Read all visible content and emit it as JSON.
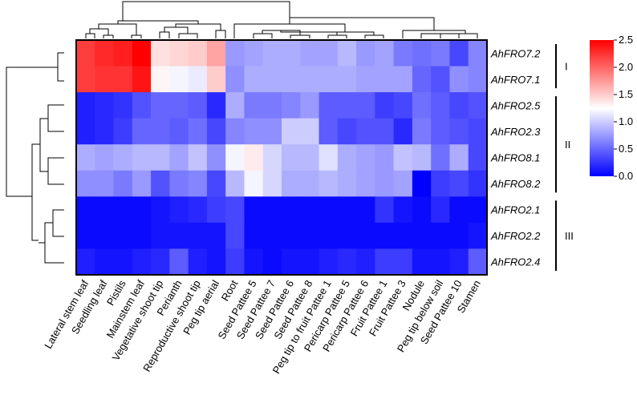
{
  "chart_data": {
    "type": "heatmap",
    "x": [
      "Lateral stem leaf",
      "Seedling leaf",
      "Pistils",
      "Mainstem leaf",
      "Vegetative shoot tip",
      "Perianth",
      "Reproductive shoot tip",
      "Peg tip aerial",
      "Root",
      "Seed Pattee 5",
      "Seed Pattee 7",
      "Seed Pattee 6",
      "Seed Pattee 8",
      "Peg tip to fruit Pattee 1",
      "Pericarp Pattee 5",
      "Pericarp Pattee 6",
      "Fruit Pattee 1",
      "Fruit Pattee 3",
      "Nodule",
      "Peg tip below soil",
      "Seed Pattee 10",
      "Stamen"
    ],
    "y": [
      "AhFRO7.2",
      "AhFRO7.1",
      "AhFRO2.5",
      "AhFRO2.3",
      "AhFRO8.1",
      "AhFRO8.2",
      "AhFRO2.1",
      "AhFRO2.2",
      "AhFRO2.4"
    ],
    "values": [
      [
        2.2,
        2.3,
        2.35,
        2.5,
        1.4,
        1.45,
        1.5,
        1.7,
        0.75,
        0.8,
        0.85,
        0.85,
        0.8,
        0.8,
        0.9,
        0.75,
        0.8,
        0.6,
        0.55,
        0.6,
        0.35,
        0.65
      ],
      [
        2.2,
        2.25,
        2.25,
        2.4,
        1.3,
        1.2,
        1.15,
        1.5,
        0.7,
        0.85,
        0.85,
        0.85,
        0.85,
        0.85,
        0.85,
        0.8,
        0.8,
        0.8,
        0.5,
        0.4,
        0.7,
        0.65
      ],
      [
        0.15,
        0.2,
        0.25,
        0.4,
        0.5,
        0.5,
        0.45,
        0.2,
        0.85,
        0.6,
        0.6,
        0.65,
        0.75,
        0.45,
        0.45,
        0.45,
        0.3,
        0.35,
        0.55,
        0.45,
        0.35,
        0.4
      ],
      [
        0.15,
        0.2,
        0.3,
        0.5,
        0.5,
        0.45,
        0.55,
        0.35,
        0.65,
        0.7,
        0.7,
        1.0,
        1.0,
        0.45,
        0.35,
        0.4,
        0.4,
        0.2,
        0.6,
        0.45,
        0.4,
        0.35
      ],
      [
        0.85,
        0.8,
        0.85,
        0.9,
        0.9,
        0.8,
        0.95,
        0.7,
        1.2,
        1.35,
        1.05,
        0.9,
        0.9,
        1.1,
        0.85,
        0.8,
        0.75,
        0.95,
        0.9,
        0.55,
        0.85,
        0.35
      ],
      [
        0.7,
        0.7,
        0.6,
        0.75,
        0.4,
        0.6,
        0.65,
        0.35,
        0.9,
        1.2,
        1.05,
        0.85,
        0.85,
        0.9,
        0.85,
        0.8,
        0.75,
        0.8,
        0.0,
        0.3,
        0.35,
        0.25
      ],
      [
        0.05,
        0.05,
        0.05,
        0.05,
        0.1,
        0.15,
        0.2,
        0.3,
        0.35,
        0.05,
        0.05,
        0.05,
        0.05,
        0.05,
        0.05,
        0.05,
        0.25,
        0.1,
        0.05,
        0.2,
        0.05,
        0.05
      ],
      [
        0.05,
        0.05,
        0.05,
        0.05,
        0.1,
        0.1,
        0.1,
        0.1,
        0.35,
        0.05,
        0.05,
        0.05,
        0.05,
        0.05,
        0.05,
        0.05,
        0.05,
        0.05,
        0.05,
        0.05,
        0.05,
        0.1
      ],
      [
        0.15,
        0.1,
        0.1,
        0.15,
        0.2,
        0.45,
        0.15,
        0.1,
        0.3,
        0.1,
        0.05,
        0.1,
        0.1,
        0.15,
        0.2,
        0.15,
        0.3,
        0.3,
        0.1,
        0.1,
        0.15,
        0.45
      ]
    ],
    "colors": [
      "#0000ff",
      "#ffffff",
      "#ff0000"
    ],
    "clim": [
      0,
      2.5
    ],
    "cticks": [
      {
        "value": 0,
        "label": "0.0"
      },
      {
        "value": 0.5,
        "label": "0.5"
      },
      {
        "value": 1,
        "label": "1.0"
      },
      {
        "value": 1.5,
        "label": "1.5"
      },
      {
        "value": 2,
        "label": "2.0"
      },
      2.5
    ],
    "groups": [
      "I",
      "II",
      "III"
    ]
  }
}
